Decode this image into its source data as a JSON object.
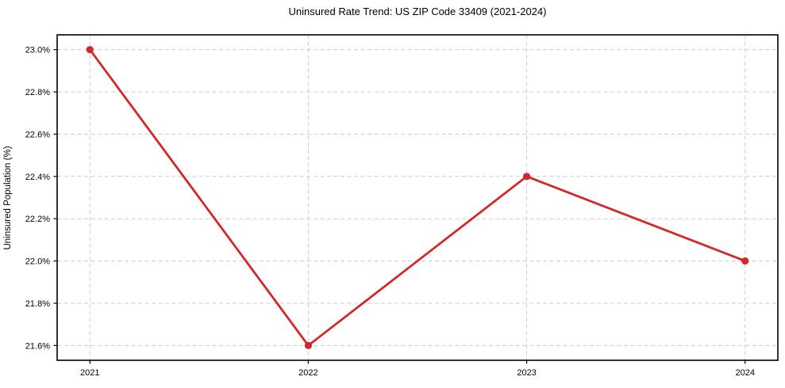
{
  "chart_data": {
    "type": "line",
    "title": "Uninsured Rate Trend: US ZIP Code 33409 (2021-2024)",
    "xlabel": "",
    "ylabel": "Uninsured Population (%)",
    "x": [
      2021,
      2022,
      2023,
      2024
    ],
    "x_tick_labels": [
      "2021",
      "2022",
      "2023",
      "2024"
    ],
    "values": [
      23.0,
      21.6,
      22.4,
      22.0
    ],
    "y_ticks": [
      21.6,
      21.8,
      22.0,
      22.2,
      22.4,
      22.6,
      22.8,
      23.0
    ],
    "y_tick_labels": [
      "21.6%",
      "21.8%",
      "22.0%",
      "22.2%",
      "22.4%",
      "22.6%",
      "22.8%",
      "23.0%"
    ],
    "xlim": [
      2020.85,
      2024.15
    ],
    "ylim": [
      21.53,
      23.07
    ],
    "grid": true,
    "grid_style": "dashed",
    "legend": "none",
    "line_color": "#d62728",
    "marker": "circle",
    "marker_color": "#d62728",
    "grid_color": "#cccccc",
    "axis_color": "#000000",
    "text_color": "#000000"
  }
}
